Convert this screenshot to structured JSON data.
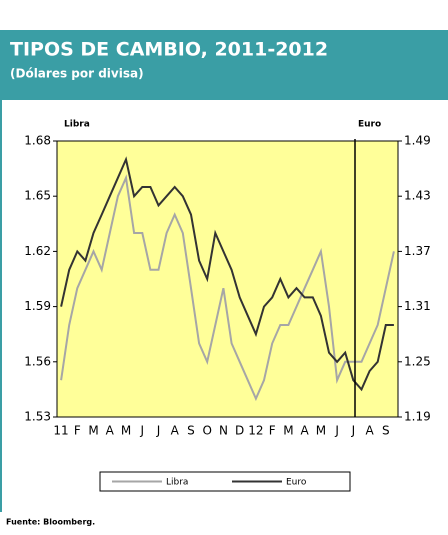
{
  "chart_data": {
    "type": "line",
    "title": "TIPOS DE CAMBIO, 2011-2012",
    "subtitle": "(Dólares por divisa)",
    "y_label": "Libra",
    "y2_label": "Euro",
    "source": "Fuente:  Bloomberg.",
    "categories": [
      "11",
      null,
      "F",
      null,
      "M",
      null,
      "A",
      null,
      "M",
      null,
      "J",
      null,
      "J",
      null,
      "A",
      null,
      "S",
      null,
      "O",
      null,
      "N",
      null,
      "D",
      null,
      "12",
      null,
      "F",
      null,
      "M",
      null,
      "A",
      null,
      "M",
      null,
      "J",
      null,
      "J",
      null,
      "A",
      null,
      "S",
      null
    ],
    "series": [
      {
        "name": "Libra",
        "color": "#a6a6a6",
        "values": [
          1.55,
          1.58,
          1.6,
          1.61,
          1.62,
          1.61,
          1.63,
          1.65,
          1.66,
          1.63,
          1.63,
          1.61,
          1.61,
          1.63,
          1.64,
          1.63,
          1.6,
          1.57,
          1.56,
          1.58,
          1.6,
          1.57,
          1.56,
          1.55,
          1.54,
          1.55,
          1.57,
          1.58,
          1.58,
          1.59,
          1.6,
          1.61,
          1.62,
          1.59,
          1.55,
          1.56,
          1.56,
          1.56,
          1.57,
          1.58,
          1.6,
          1.62
        ]
      },
      {
        "name": "Euro",
        "color": "#333333",
        "axis": "y2",
        "values": [
          1.31,
          1.35,
          1.37,
          1.36,
          1.39,
          1.41,
          1.43,
          1.45,
          1.47,
          1.43,
          1.44,
          1.44,
          1.42,
          1.43,
          1.44,
          1.43,
          1.41,
          1.36,
          1.34,
          1.39,
          1.37,
          1.35,
          1.32,
          1.3,
          1.28,
          1.31,
          1.32,
          1.34,
          1.32,
          1.33,
          1.32,
          1.32,
          1.3,
          1.26,
          1.25,
          1.26,
          1.23,
          1.22,
          1.24,
          1.25,
          1.29,
          1.29
        ]
      }
    ],
    "ylim": [
      1.53,
      1.68
    ],
    "yticks": [
      1.53,
      1.56,
      1.59,
      1.62,
      1.65,
      1.68
    ],
    "y2lim": [
      1.19,
      1.49
    ],
    "y2ticks": [
      1.19,
      1.25,
      1.31,
      1.37,
      1.43,
      1.49
    ],
    "plot_color": "#ffff99"
  }
}
